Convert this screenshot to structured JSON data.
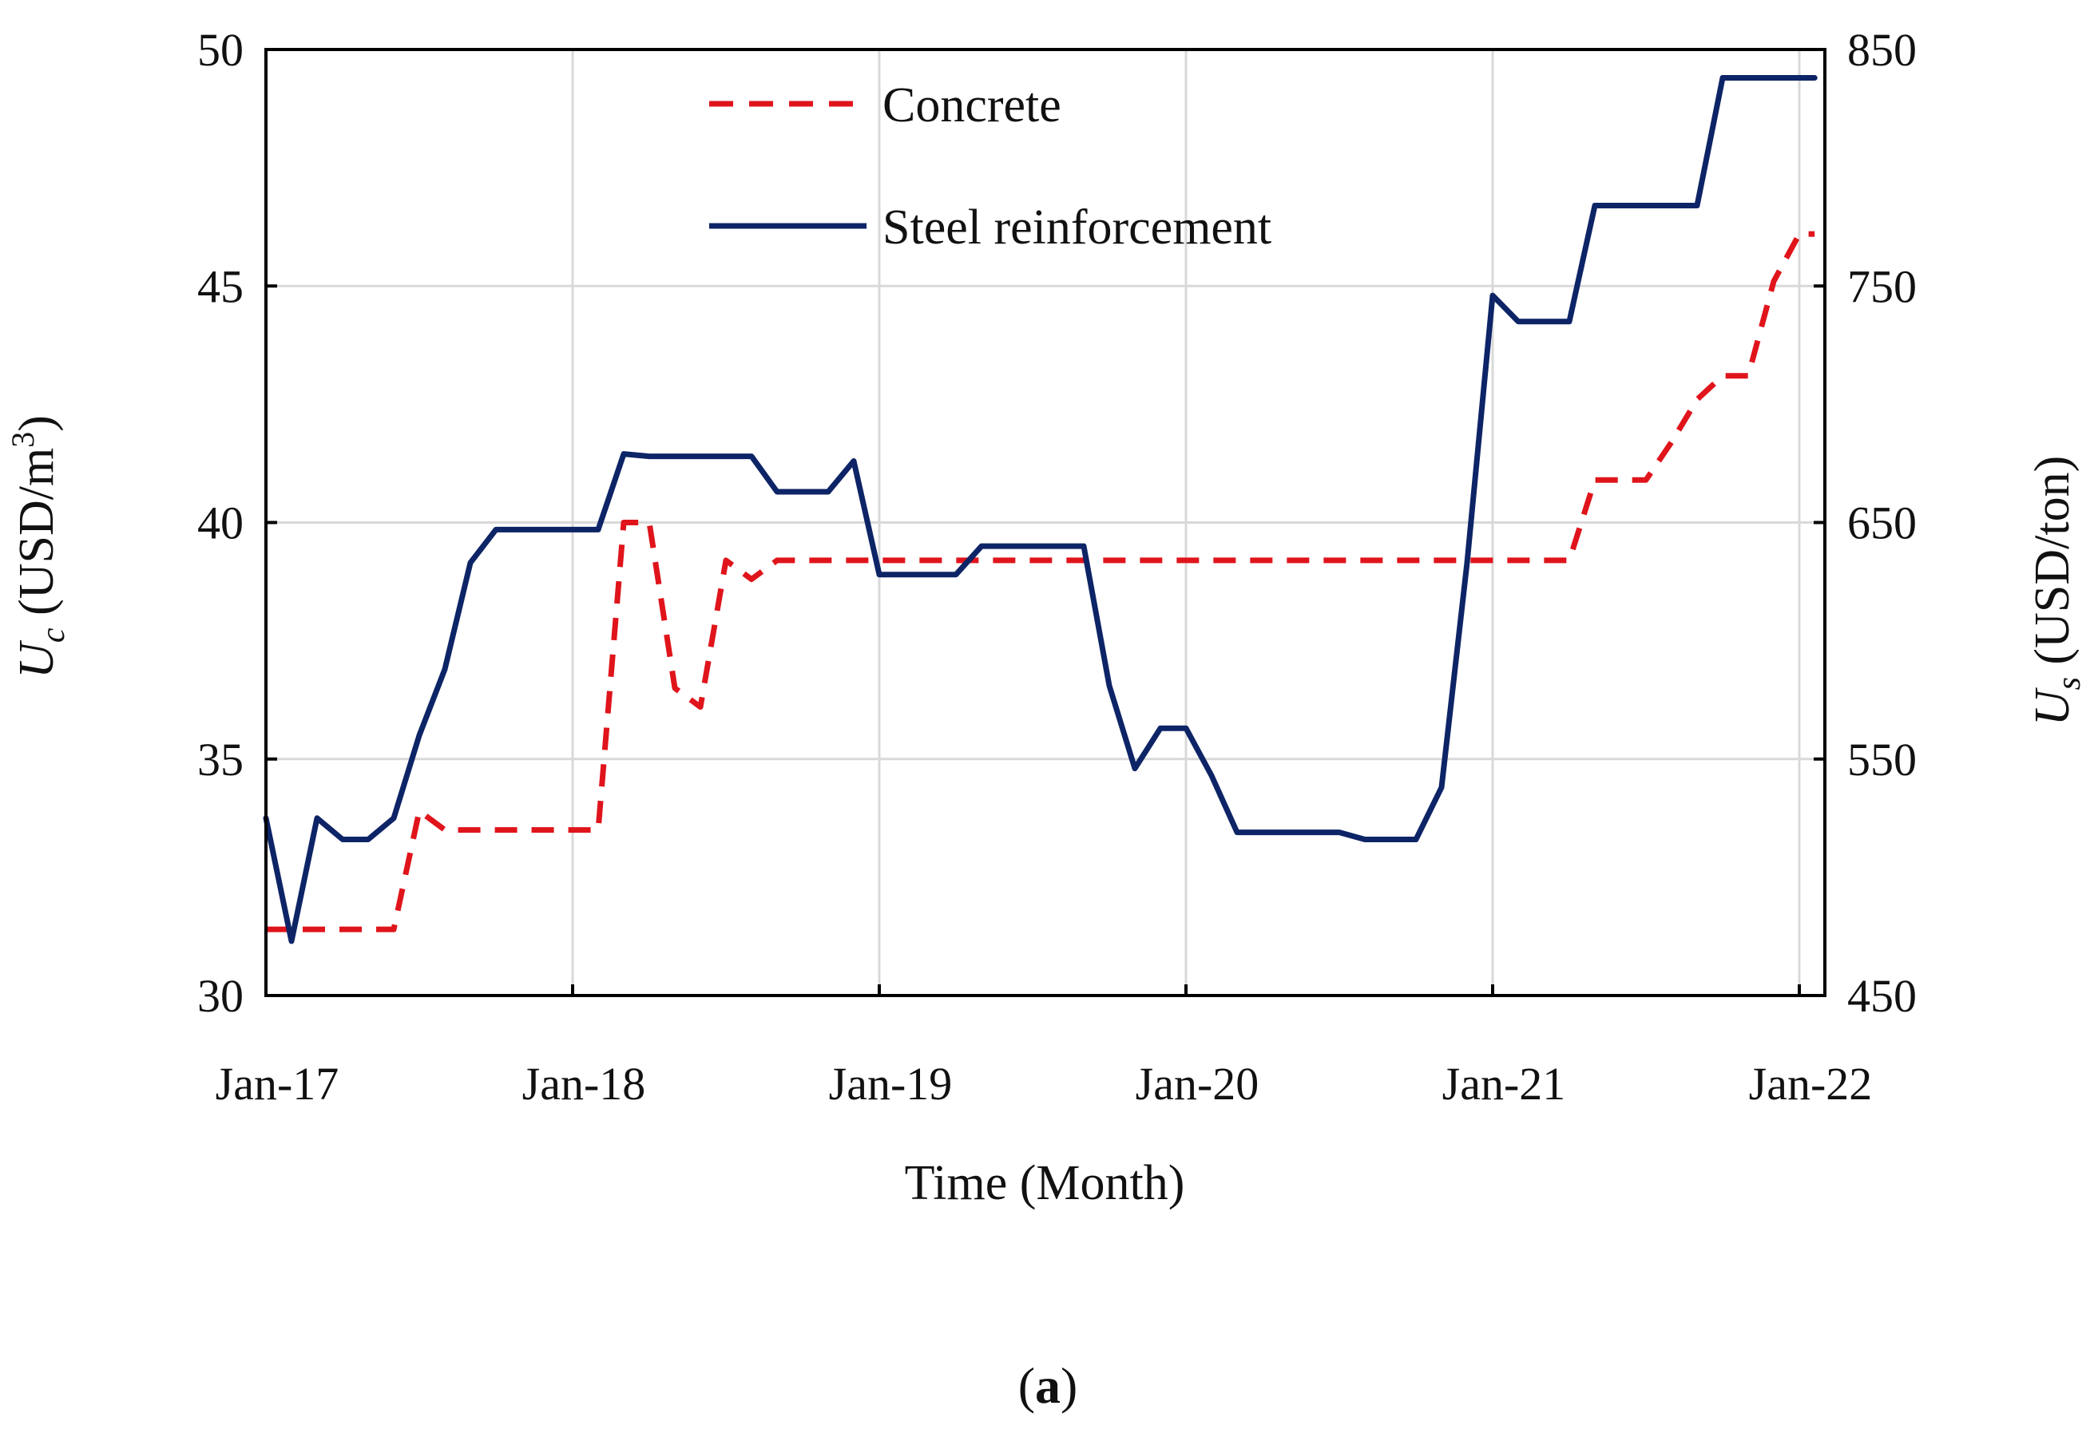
{
  "chart_data": {
    "type": "line",
    "caption": "(a)",
    "caption_letter": "a",
    "xlabel": "Time (Month)",
    "ylabel_left": "U_c (USD/m³)",
    "ylabel_left_symbol": "U",
    "ylabel_left_sub": "c",
    "ylabel_left_unit": " (USD/m",
    "ylabel_left_sup": "3",
    "ylabel_left_close": ")",
    "ylabel_right": "U_s (USD/ton)",
    "ylabel_right_symbol": "U",
    "ylabel_right_sub": "s",
    "ylabel_right_unit": " (USD/ton)",
    "x_ticks": [
      "Jan-17",
      "Jan-18",
      "Jan-19",
      "Jan-20",
      "Jan-21",
      "Jan-22"
    ],
    "x_tick_months": [
      0,
      12,
      24,
      36,
      48,
      60
    ],
    "xlim": [
      0,
      61
    ],
    "ylim_left": [
      30,
      50
    ],
    "yticks_left": [
      30,
      35,
      40,
      45,
      50
    ],
    "ylim_right": [
      450,
      850
    ],
    "yticks_right": [
      450,
      550,
      650,
      750,
      850
    ],
    "grid": true,
    "legend_position": "top-center",
    "series": [
      {
        "name": "Concrete",
        "axis": "left",
        "color": "#e0141b",
        "style": "dashed",
        "points": [
          [
            0,
            31.4
          ],
          [
            1,
            31.4
          ],
          [
            2,
            31.4
          ],
          [
            3,
            31.4
          ],
          [
            4,
            31.4
          ],
          [
            5,
            31.4
          ],
          [
            6,
            33.9
          ],
          [
            7,
            33.5
          ],
          [
            8,
            33.5
          ],
          [
            9,
            33.5
          ],
          [
            10,
            33.5
          ],
          [
            11,
            33.5
          ],
          [
            12,
            33.5
          ],
          [
            13,
            33.5
          ],
          [
            14,
            40.0
          ],
          [
            15,
            40.0
          ],
          [
            16,
            36.5
          ],
          [
            17,
            36.1
          ],
          [
            18,
            39.2
          ],
          [
            19,
            38.8
          ],
          [
            20,
            39.2
          ],
          [
            21,
            39.2
          ],
          [
            22,
            39.2
          ],
          [
            23,
            39.2
          ],
          [
            24,
            39.2
          ],
          [
            30,
            39.2
          ],
          [
            36,
            39.2
          ],
          [
            42,
            39.2
          ],
          [
            48,
            39.2
          ],
          [
            49,
            39.2
          ],
          [
            50,
            39.2
          ],
          [
            51,
            39.2
          ],
          [
            52,
            40.9
          ],
          [
            53,
            40.9
          ],
          [
            54,
            40.9
          ],
          [
            55,
            41.7
          ],
          [
            56,
            42.6
          ],
          [
            57,
            43.1
          ],
          [
            58,
            43.1
          ],
          [
            59,
            45.1
          ],
          [
            60,
            46.1
          ],
          [
            60.6,
            46.1
          ]
        ]
      },
      {
        "name": "Steel reinforcement",
        "axis": "right",
        "color": "#0d2466",
        "style": "solid",
        "points": [
          [
            0,
            525
          ],
          [
            1,
            473
          ],
          [
            2,
            525
          ],
          [
            3,
            516
          ],
          [
            4,
            516
          ],
          [
            5,
            525
          ],
          [
            6,
            560
          ],
          [
            7,
            588
          ],
          [
            8,
            633
          ],
          [
            9,
            647
          ],
          [
            10,
            647
          ],
          [
            11,
            647
          ],
          [
            12,
            647
          ],
          [
            13,
            647
          ],
          [
            14,
            679
          ],
          [
            15,
            678
          ],
          [
            16,
            678
          ],
          [
            17,
            678
          ],
          [
            18,
            678
          ],
          [
            19,
            678
          ],
          [
            20,
            663
          ],
          [
            21,
            663
          ],
          [
            22,
            663
          ],
          [
            23,
            676
          ],
          [
            24,
            628
          ],
          [
            25,
            628
          ],
          [
            26,
            628
          ],
          [
            27,
            628
          ],
          [
            28,
            640
          ],
          [
            29,
            640
          ],
          [
            30,
            640
          ],
          [
            31,
            640
          ],
          [
            32,
            640
          ],
          [
            33,
            581
          ],
          [
            34,
            546
          ],
          [
            35,
            563
          ],
          [
            36,
            563
          ],
          [
            37,
            543
          ],
          [
            38,
            519
          ],
          [
            39,
            519
          ],
          [
            40,
            519
          ],
          [
            41,
            519
          ],
          [
            42,
            519
          ],
          [
            43,
            516
          ],
          [
            44,
            516
          ],
          [
            45,
            516
          ],
          [
            46,
            538
          ],
          [
            47,
            633
          ],
          [
            48,
            746
          ],
          [
            49,
            735
          ],
          [
            50,
            735
          ],
          [
            51,
            735
          ],
          [
            52,
            784
          ],
          [
            53,
            784
          ],
          [
            54,
            784
          ],
          [
            55,
            784
          ],
          [
            56,
            784
          ],
          [
            57,
            838
          ],
          [
            58,
            838
          ],
          [
            59,
            838
          ],
          [
            60,
            838
          ],
          [
            60.6,
            838
          ]
        ]
      }
    ]
  }
}
